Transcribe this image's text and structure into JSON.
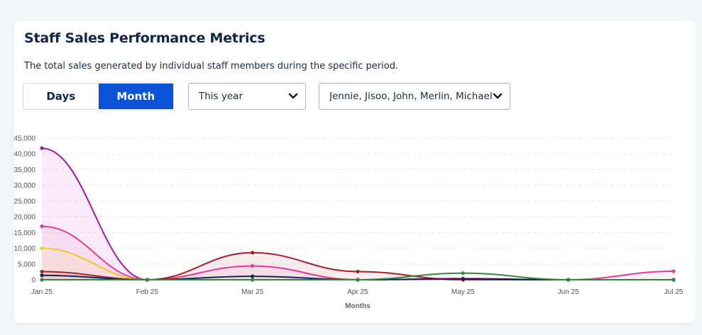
{
  "header": {
    "title": "Staff Sales Performance Metrics",
    "subtitle": "The total sales generated by individual staff members during the specific period."
  },
  "toggle": {
    "days_label": "Days",
    "month_label": "Month",
    "active": "month"
  },
  "filters": {
    "period": "This year",
    "staff": "Jennie, Jisoo, John, Merlin, Michael..."
  },
  "colors": {
    "accent": "#0a52d6",
    "purple": "#a0199e",
    "pink": "#e8379a",
    "yellow": "#f1c82b",
    "darkred": "#a91e2c",
    "navy": "#1a1f55",
    "green": "#2c8a3a"
  },
  "chart_data": {
    "type": "area",
    "categories": [
      "Jan 25",
      "Feb 25",
      "Mar 25",
      "Apr 25",
      "May 25",
      "Jun 25",
      "Jul 25"
    ],
    "xlabel": "Months",
    "ylabel": "",
    "ylim": [
      0,
      45000
    ],
    "yticks": [
      "0",
      "5,000",
      "10,000",
      "15,000",
      "20,000",
      "25,000",
      "30,000",
      "35,000",
      "40,000",
      "45,000"
    ],
    "grid": true,
    "legend": "none",
    "series": [
      {
        "color": "#a0199e",
        "fill": "rgba(215,110,210,0.14)",
        "values": [
          41800,
          0,
          0,
          0,
          0,
          0,
          0
        ]
      },
      {
        "color": "#e8379a",
        "fill": "rgba(240,120,180,0.12)",
        "values": [
          17000,
          0,
          4400,
          0,
          400,
          0,
          2700
        ]
      },
      {
        "color": "#f1c82b",
        "fill": "rgba(240,210,90,0.12)",
        "values": [
          10000,
          0,
          0,
          0,
          0,
          0,
          0
        ]
      },
      {
        "color": "#a91e2c",
        "fill": "rgba(200,70,80,0.10)",
        "values": [
          2600,
          0,
          8600,
          2600,
          0,
          0,
          0
        ]
      },
      {
        "color": "#1a1f55",
        "fill": "none",
        "values": [
          1400,
          0,
          1100,
          0,
          300,
          0,
          0
        ]
      },
      {
        "color": "#2c8a3a",
        "fill": "none",
        "values": [
          0,
          0,
          0,
          0,
          2100,
          0,
          0
        ]
      }
    ]
  }
}
